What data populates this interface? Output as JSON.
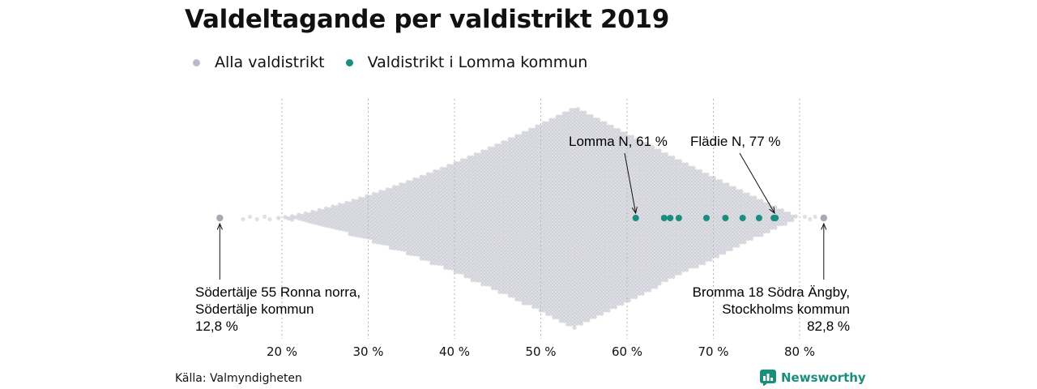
{
  "title": "Valdeltagande per valdistrikt 2019",
  "legend": [
    {
      "label": "Alla valdistrikt",
      "color": "#bcbcc8"
    },
    {
      "label": "Valdistrikt i Lomma kommun",
      "color": "#1a8e7d"
    }
  ],
  "source": "Källa: Valmyndigheten",
  "brand": {
    "name": "Newsworthy",
    "icon": "newsworthy-logo-icon"
  },
  "chart_data": {
    "type": "scatter",
    "xlim": [
      12,
      84
    ],
    "xticks": [
      20,
      30,
      40,
      50,
      60,
      70,
      80
    ],
    "xtick_labels": [
      "20 %",
      "30 %",
      "40 %",
      "50 %",
      "60 %",
      "70 %",
      "80 %"
    ],
    "grid": "vertical dotted",
    "legend_position": "top-left",
    "series": [
      {
        "name": "Alla valdistrikt",
        "color": "#bcbcc8",
        "distribution": {
          "min": 12.8,
          "max": 82.8,
          "peak": 54,
          "description": "beeswarm of all districts"
        }
      },
      {
        "name": "Valdistrikt i Lomma kommun",
        "color": "#1a8e7d",
        "values": [
          61.0,
          64.3,
          65.0,
          66.0,
          69.2,
          71.4,
          73.4,
          75.3,
          77.0,
          77.2
        ]
      }
    ],
    "annotations": [
      {
        "id": "lomma",
        "lines": [
          "Lomma N, 61 %"
        ],
        "value": 61
      },
      {
        "id": "fladie",
        "lines": [
          "Flädie N, 77 %"
        ],
        "value": 77
      },
      {
        "id": "min",
        "lines": [
          "Södertälje 55 Ronna norra,",
          "Södertälje kommun",
          "12,8 %"
        ],
        "value": 12.8
      },
      {
        "id": "max",
        "lines": [
          "Bromma 18 Södra Ängby,",
          "Stockholms kommun",
          "82,8 %"
        ],
        "value": 82.8
      }
    ]
  }
}
